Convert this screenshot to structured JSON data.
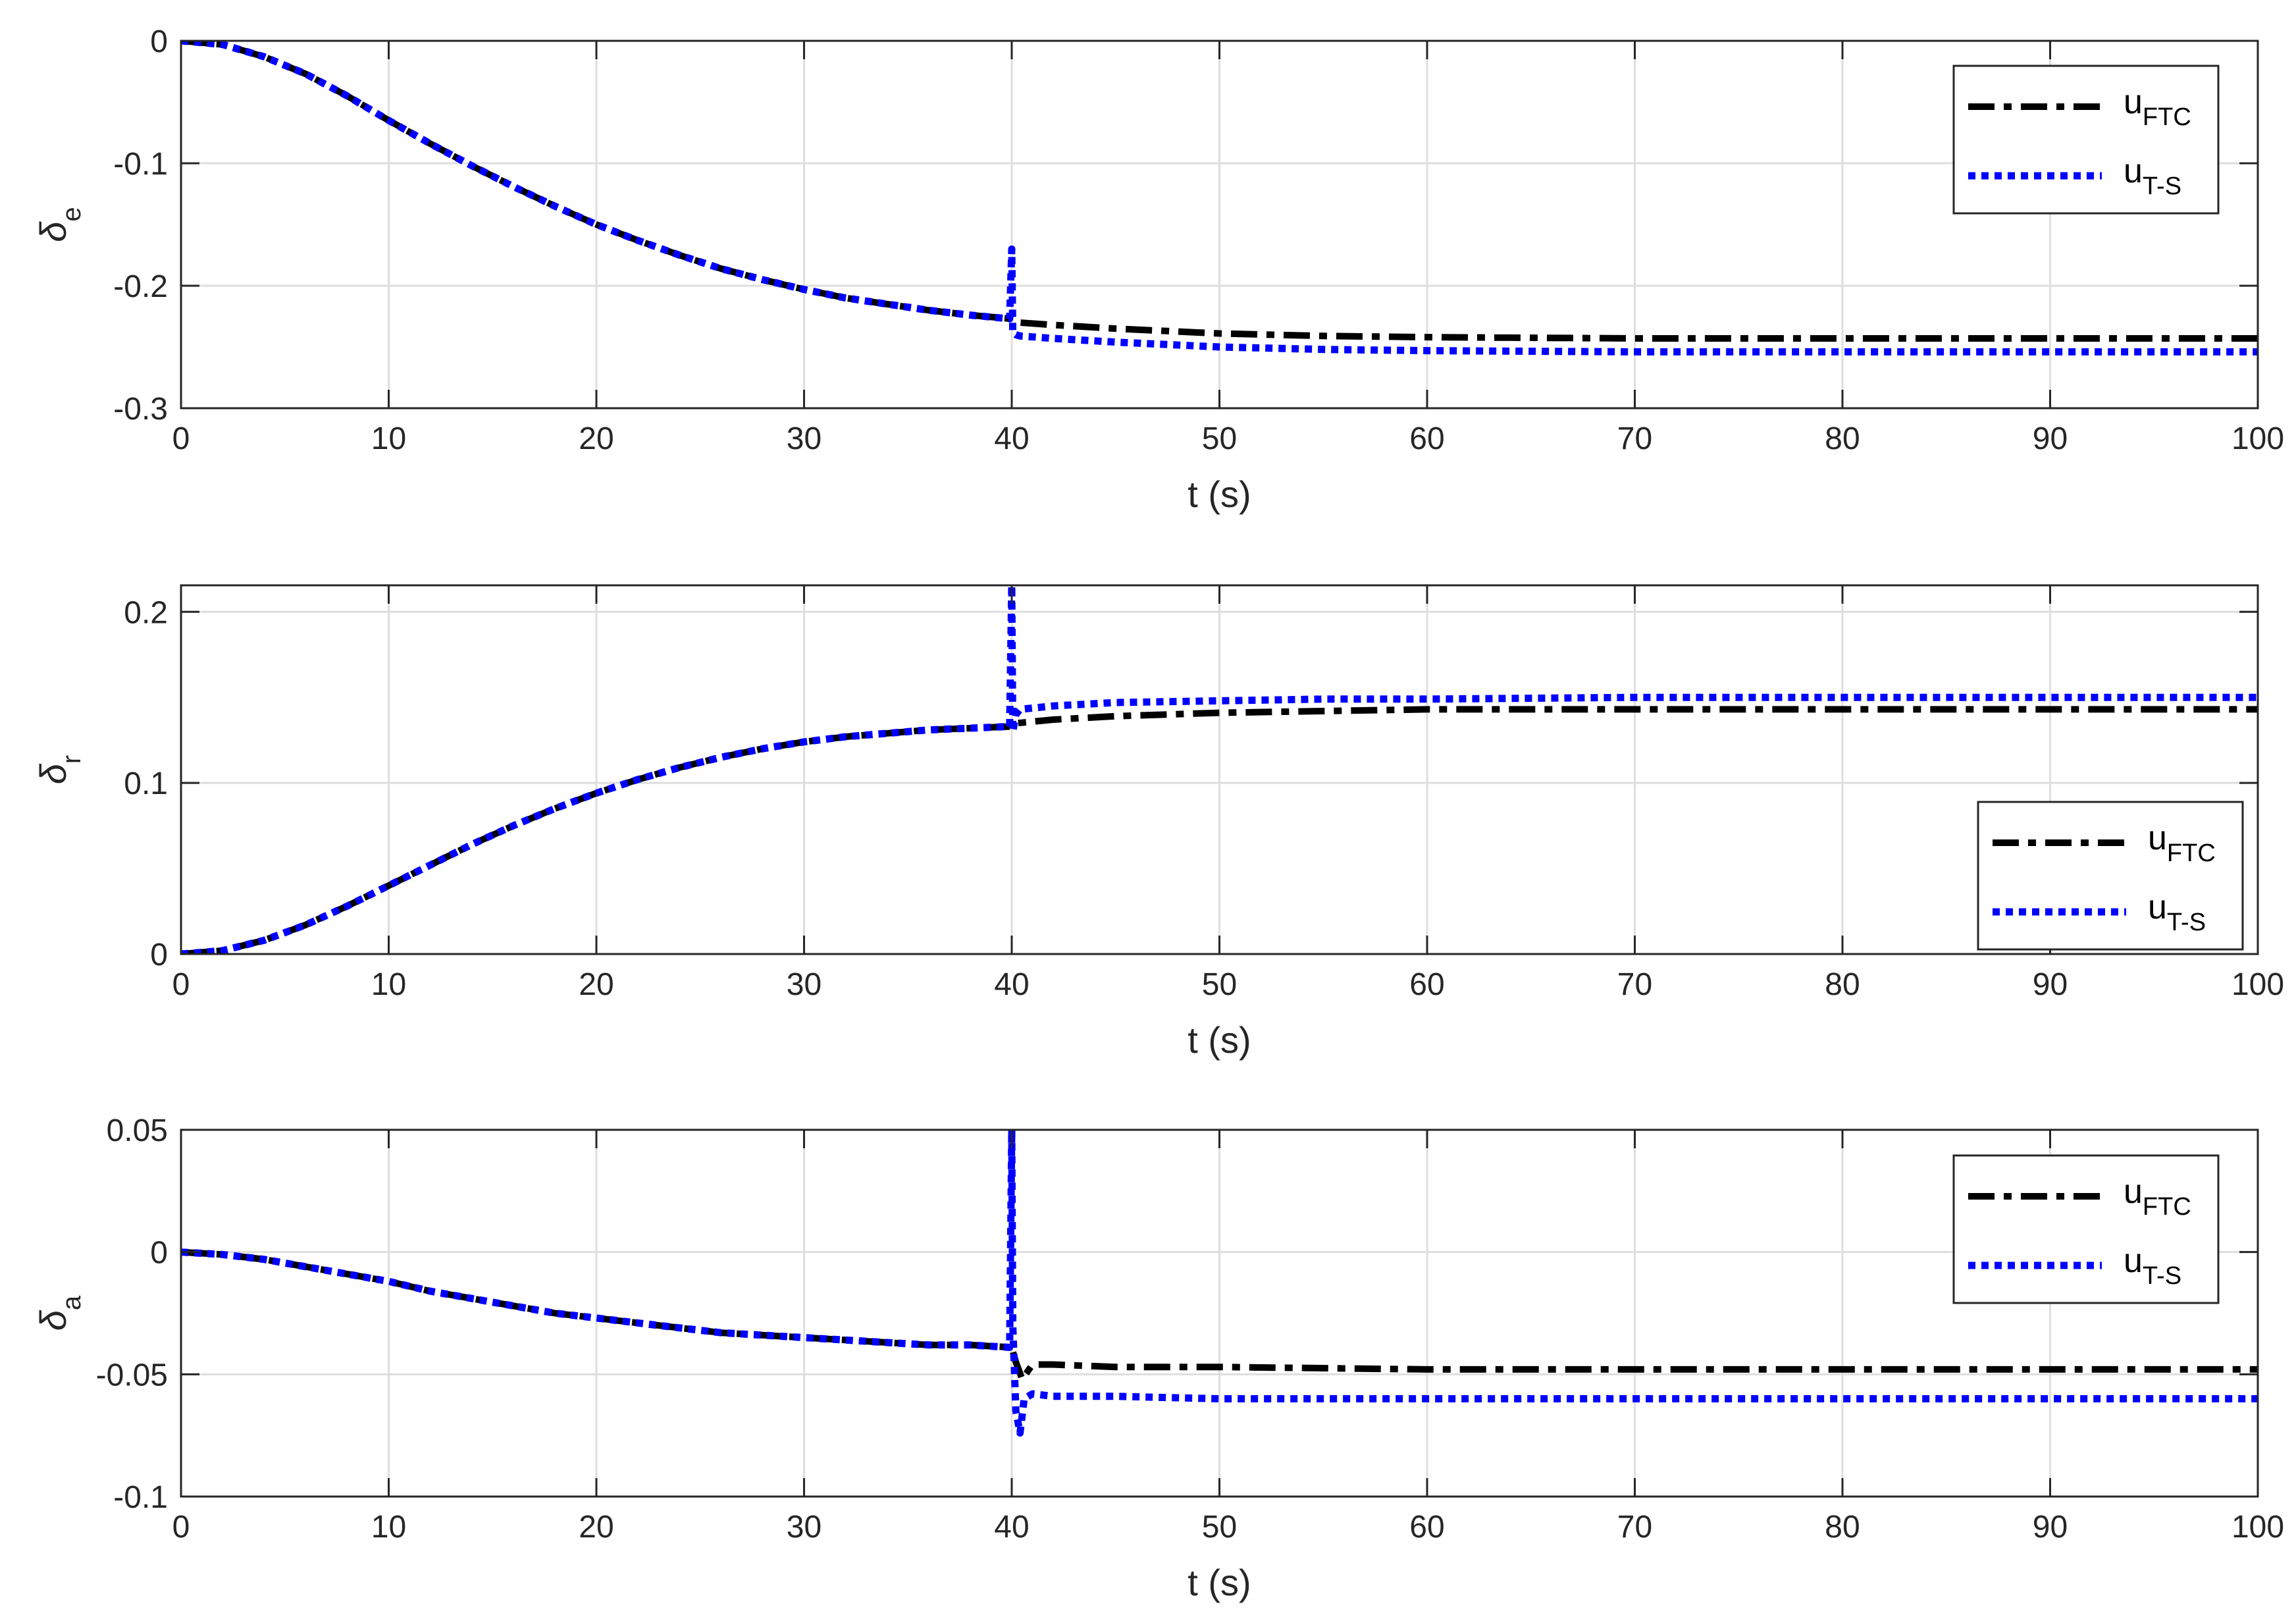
{
  "chart_data": [
    {
      "type": "line",
      "xlabel": "t (s)",
      "ylabel_main": "δ",
      "ylabel_sub": "e",
      "xlim": [
        0,
        100
      ],
      "ylim": [
        -0.3,
        0
      ],
      "xticks": [
        0,
        10,
        20,
        30,
        40,
        50,
        60,
        70,
        80,
        90,
        100
      ],
      "yticks": [
        -0.3,
        -0.2,
        -0.1,
        0
      ],
      "ytick_labels": [
        "-0.3",
        "-0.2",
        "-0.1",
        "0"
      ],
      "grid": true,
      "legend_position": "top-right",
      "series": [
        {
          "legend_main": "u",
          "legend_sub": "FTC",
          "color": "#000000",
          "style": "dashdot",
          "x": [
            0,
            2,
            4,
            6,
            8,
            10,
            12,
            14,
            16,
            18,
            20,
            22,
            24,
            26,
            28,
            30,
            32,
            34,
            36,
            38,
            40,
            40.3,
            42,
            45,
            50,
            55,
            60,
            70,
            80,
            90,
            100
          ],
          "y": [
            0,
            -0.003,
            -0.013,
            -0.027,
            -0.045,
            -0.065,
            -0.084,
            -0.102,
            -0.119,
            -0.135,
            -0.15,
            -0.163,
            -0.175,
            -0.186,
            -0.195,
            -0.203,
            -0.21,
            -0.215,
            -0.22,
            -0.224,
            -0.227,
            -0.23,
            -0.232,
            -0.235,
            -0.239,
            -0.241,
            -0.242,
            -0.243,
            -0.243,
            -0.243,
            -0.243
          ]
        },
        {
          "legend_main": "u",
          "legend_sub": "T-S",
          "color": "#0000ff",
          "style": "dotted",
          "x": [
            0,
            2,
            4,
            6,
            8,
            10,
            12,
            14,
            16,
            18,
            20,
            22,
            24,
            26,
            28,
            30,
            32,
            34,
            36,
            38,
            39.9,
            40,
            40.05,
            40.2,
            40.4,
            42,
            45,
            50,
            55,
            60,
            70,
            80,
            90,
            100
          ],
          "y": [
            0,
            -0.003,
            -0.013,
            -0.027,
            -0.045,
            -0.065,
            -0.084,
            -0.102,
            -0.119,
            -0.135,
            -0.15,
            -0.163,
            -0.175,
            -0.186,
            -0.195,
            -0.203,
            -0.21,
            -0.215,
            -0.22,
            -0.224,
            -0.227,
            -0.17,
            -0.238,
            -0.24,
            -0.241,
            -0.243,
            -0.246,
            -0.25,
            -0.252,
            -0.253,
            -0.254,
            -0.254,
            -0.254,
            -0.254
          ]
        }
      ]
    },
    {
      "type": "line",
      "xlabel": "t (s)",
      "ylabel_main": "δ",
      "ylabel_sub": "r",
      "xlim": [
        0,
        100
      ],
      "ylim": [
        0,
        0.2
      ],
      "ylim_display_max": 0.2155,
      "xticks": [
        0,
        10,
        20,
        30,
        40,
        50,
        60,
        70,
        80,
        90,
        100
      ],
      "yticks": [
        0,
        0.1,
        0.2
      ],
      "ytick_labels": [
        "0",
        "0.1",
        "0.2"
      ],
      "grid": true,
      "legend_position": "bottom-right",
      "series": [
        {
          "legend_main": "u",
          "legend_sub": "FTC",
          "color": "#000000",
          "style": "dashdot",
          "x": [
            0,
            2,
            4,
            6,
            8,
            10,
            12,
            14,
            16,
            18,
            20,
            22,
            24,
            26,
            28,
            30,
            32,
            34,
            36,
            38,
            40,
            40.3,
            42,
            45,
            50,
            55,
            60,
            70,
            80,
            90,
            100
          ],
          "y": [
            0,
            0.002,
            0.008,
            0.017,
            0.028,
            0.04,
            0.052,
            0.064,
            0.075,
            0.085,
            0.094,
            0.102,
            0.109,
            0.115,
            0.12,
            0.124,
            0.127,
            0.129,
            0.131,
            0.132,
            0.133,
            0.135,
            0.137,
            0.139,
            0.141,
            0.142,
            0.143,
            0.143,
            0.143,
            0.143,
            0.143
          ]
        },
        {
          "legend_main": "u",
          "legend_sub": "T-S",
          "color": "#0000ff",
          "style": "dotted",
          "x": [
            0,
            2,
            4,
            6,
            8,
            10,
            12,
            14,
            16,
            18,
            20,
            22,
            24,
            26,
            28,
            30,
            32,
            34,
            36,
            38,
            39.9,
            40,
            40.05,
            40.2,
            40.4,
            42,
            45,
            50,
            55,
            60,
            70,
            80,
            90,
            100
          ],
          "y": [
            0,
            0.002,
            0.008,
            0.017,
            0.028,
            0.04,
            0.052,
            0.064,
            0.075,
            0.085,
            0.094,
            0.102,
            0.109,
            0.115,
            0.12,
            0.124,
            0.127,
            0.129,
            0.131,
            0.132,
            0.133,
            0.2155,
            0.13,
            0.14,
            0.143,
            0.145,
            0.147,
            0.148,
            0.149,
            0.149,
            0.15,
            0.15,
            0.15,
            0.15
          ]
        }
      ]
    },
    {
      "type": "line",
      "xlabel": "t (s)",
      "ylabel_main": "δ",
      "ylabel_sub": "a",
      "xlim": [
        0,
        100
      ],
      "ylim": [
        -0.1,
        0.05
      ],
      "xticks": [
        0,
        10,
        20,
        30,
        40,
        50,
        60,
        70,
        80,
        90,
        100
      ],
      "yticks": [
        -0.1,
        -0.05,
        0,
        0.05
      ],
      "ytick_labels": [
        "-0.1",
        "-0.05",
        "0",
        "0.05"
      ],
      "grid": true,
      "legend_position": "top-right",
      "series": [
        {
          "legend_main": "u",
          "legend_sub": "FTC",
          "color": "#000000",
          "style": "dashdot",
          "x": [
            0,
            2,
            4,
            6,
            8,
            10,
            12,
            14,
            16,
            18,
            20,
            22,
            24,
            26,
            28,
            30,
            32,
            34,
            36,
            38,
            40,
            40.2,
            40.5,
            41,
            42,
            45,
            50,
            60,
            70,
            80,
            90,
            100
          ],
          "y": [
            0,
            -0.001,
            -0.003,
            -0.006,
            -0.009,
            -0.012,
            -0.016,
            -0.019,
            -0.022,
            -0.025,
            -0.027,
            -0.029,
            -0.031,
            -0.033,
            -0.034,
            -0.035,
            -0.036,
            -0.037,
            -0.038,
            -0.038,
            -0.039,
            -0.045,
            -0.052,
            -0.046,
            -0.046,
            -0.047,
            -0.047,
            -0.048,
            -0.048,
            -0.048,
            -0.048,
            -0.048
          ]
        },
        {
          "legend_main": "u",
          "legend_sub": "T-S",
          "color": "#0000ff",
          "style": "dotted",
          "x": [
            0,
            2,
            4,
            6,
            8,
            10,
            12,
            14,
            16,
            18,
            20,
            22,
            24,
            26,
            28,
            30,
            32,
            34,
            36,
            38,
            39.9,
            40,
            40.05,
            40.2,
            40.4,
            40.6,
            41,
            42,
            45,
            50,
            60,
            70,
            80,
            90,
            100
          ],
          "y": [
            0,
            -0.001,
            -0.003,
            -0.006,
            -0.009,
            -0.012,
            -0.016,
            -0.019,
            -0.022,
            -0.025,
            -0.027,
            -0.029,
            -0.031,
            -0.033,
            -0.034,
            -0.035,
            -0.036,
            -0.037,
            -0.038,
            -0.038,
            -0.039,
            0.05,
            -0.03,
            -0.065,
            -0.074,
            -0.06,
            -0.058,
            -0.059,
            -0.059,
            -0.06,
            -0.06,
            -0.06,
            -0.06,
            -0.06,
            -0.06
          ]
        }
      ]
    }
  ]
}
